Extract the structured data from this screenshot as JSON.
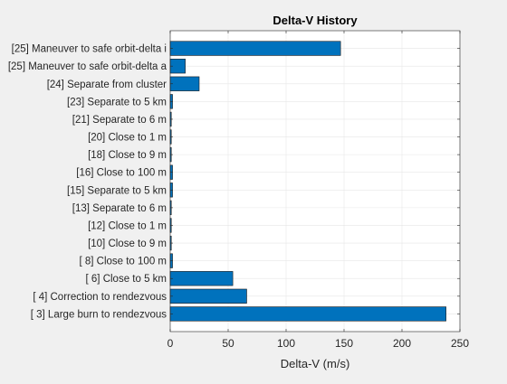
{
  "colors": {
    "figure_bg": "#f0f0f0",
    "axes_bg": "#ffffff",
    "bar_fill": "#0072bd",
    "bar_edge": "#1a1a1a",
    "grid": "#e6e6e6",
    "axis_line": "#262626",
    "text": "#262626"
  },
  "chart_data": {
    "type": "bar",
    "orientation": "horizontal",
    "title": "Delta-V History",
    "xlabel": "Delta-V (m/s)",
    "ylabel": "",
    "xlim": [
      0,
      250
    ],
    "xticks": [
      0,
      50,
      100,
      150,
      200,
      250
    ],
    "grid": true,
    "legend": "none",
    "categories": [
      "[ 3] Large burn to rendezvous",
      "[ 4] Correction to rendezvous",
      "[ 6] Close to 5 km",
      "[ 8] Close to 100 m",
      "[10] Close to 9 m",
      "[12] Close to 1 m",
      "[13] Separate to 6 m",
      "[15] Separate to  5 km",
      "[16] Close to 100 m",
      "[18] Close to 9 m",
      "[20] Close to 1 m",
      "[21] Separate to 6 m",
      "[23] Separate to  5 km",
      "[24] Separate from cluster",
      "[25] Maneuver to safe orbit-delta a",
      "[25] Maneuver to safe orbit-delta i"
    ],
    "values": [
      238,
      66,
      54,
      2,
      0.3,
      0.3,
      0.3,
      2,
      2,
      0.3,
      0.3,
      0.3,
      2,
      25,
      13,
      147
    ]
  }
}
